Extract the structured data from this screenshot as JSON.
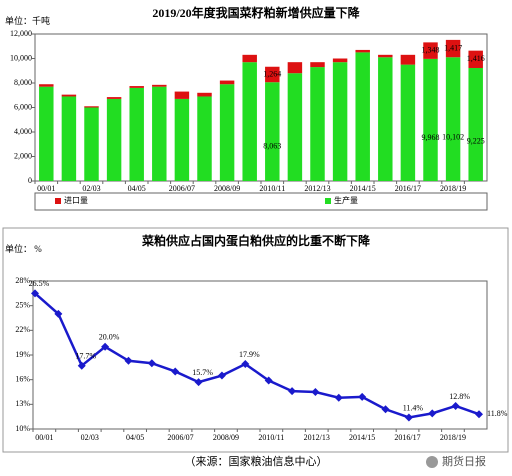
{
  "chart_data": [
    {
      "type": "bar",
      "stacked": true,
      "title": "2019/20年度我国菜籽粕新增供应量下降",
      "unit": "单位：千吨",
      "categories": [
        "00/01",
        null,
        "02/03",
        null,
        "04/05",
        null,
        "2006/07",
        null,
        "2008/09",
        null,
        "2010/11",
        null,
        "2012/13",
        null,
        "2014/15",
        null,
        "2016/17",
        null,
        "2018/19",
        null
      ],
      "series": [
        {
          "name": "生产量",
          "color": "#22dd22",
          "values": [
            7700,
            6900,
            6000,
            6700,
            7600,
            7700,
            6700,
            6900,
            7900,
            9700,
            8063,
            8800,
            9300,
            9700,
            10500,
            10100,
            9500,
            9968,
            10102,
            9225
          ],
          "value_labels": [
            null,
            null,
            null,
            null,
            null,
            null,
            null,
            null,
            null,
            null,
            "8,063",
            null,
            null,
            null,
            null,
            null,
            null,
            "9,968",
            "10,102",
            "9,225"
          ]
        },
        {
          "name": "进口量",
          "color": "#dd1111",
          "values": [
            200,
            150,
            100,
            150,
            150,
            150,
            600,
            300,
            300,
            600,
            1264,
            900,
            400,
            300,
            200,
            200,
            800,
            1348,
            1417,
            1416
          ],
          "value_labels": [
            null,
            null,
            null,
            null,
            null,
            null,
            null,
            null,
            null,
            null,
            "1,264",
            null,
            null,
            null,
            null,
            null,
            null,
            "1,348",
            "1,417",
            "1,416"
          ]
        }
      ],
      "ylim": [
        0,
        12000
      ],
      "yticks": [
        0,
        {
          "value": 2000,
          "label": "2,000"
        },
        {
          "value": 4000,
          "label": "4,000"
        },
        {
          "value": 6000,
          "label": "6,000"
        },
        {
          "value": 8000,
          "label": "8,000"
        },
        {
          "value": 10000,
          "label": "10,000"
        },
        {
          "value": 12000,
          "label": "12,000"
        }
      ],
      "grid": false,
      "legend": "bottom"
    },
    {
      "type": "line",
      "title": "菜粕供应占国内蛋白粕供应的比重不断下降",
      "unit": "单位： %",
      "categories": [
        "00/01",
        null,
        "02/03",
        null,
        "04/05",
        null,
        "2006/07",
        null,
        "2008/09",
        null,
        "2010/11",
        null,
        "2012/13",
        null,
        "2014/15",
        null,
        "2016/17",
        null,
        "2018/19",
        null
      ],
      "series": [
        {
          "name": "比重",
          "color": "#1a1acc",
          "values": [
            26.5,
            24.0,
            17.7,
            20.0,
            18.3,
            18.0,
            17.0,
            15.7,
            16.5,
            17.9,
            15.9,
            14.6,
            14.5,
            13.8,
            13.9,
            12.4,
            11.4,
            11.9,
            12.8,
            11.8
          ],
          "value_labels": [
            "26.5%",
            null,
            "17.7%",
            "20.0%",
            null,
            null,
            null,
            "15.7%",
            null,
            "17.9%",
            null,
            null,
            null,
            null,
            null,
            null,
            "11.4%",
            null,
            "12.8%",
            "11.8%"
          ]
        }
      ],
      "ylim": [
        10,
        28
      ],
      "yticks": [
        {
          "value": 10,
          "label": "10%"
        },
        {
          "value": 13,
          "label": "13%"
        },
        {
          "value": 16,
          "label": "16%"
        },
        {
          "value": 19,
          "label": "19%"
        },
        {
          "value": 22,
          "label": "22%"
        },
        {
          "value": 25,
          "label": "25%"
        },
        {
          "value": 28,
          "label": "28%"
        }
      ],
      "grid": false
    }
  ],
  "source": "（来源：国家粮油信息中心）",
  "watermark": "期货日报"
}
